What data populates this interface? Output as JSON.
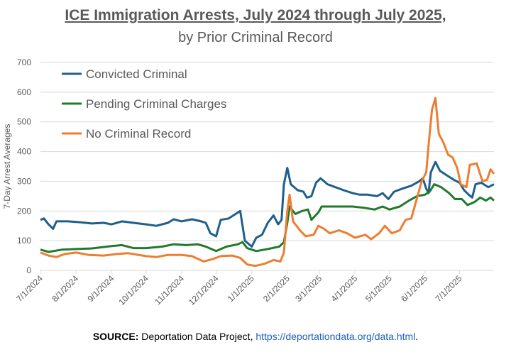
{
  "title": "ICE Immigration Arrests, July 2024 through July 2025,",
  "subtitle": "by Prior Criminal Record",
  "source": {
    "label": "SOURCE:",
    "text": " Deportation Data Project, ",
    "link": "https://deportationdata.org/data.html",
    "end": "."
  },
  "chart_data": {
    "type": "line",
    "title": "ICE Immigration Arrests, July 2024 through July 2025, by Prior Criminal Record",
    "xlabel": "",
    "ylabel": "7-Day Arrest Averages",
    "ylim": [
      0,
      700
    ],
    "yticks": [
      "0",
      "100",
      "200",
      "300",
      "400",
      "500",
      "600",
      "700"
    ],
    "xdomain": [
      "2024-07-01",
      "2025-07-31"
    ],
    "xticks": [
      {
        "label": "7/1/2024",
        "date": "2024-07-01"
      },
      {
        "label": "8/1/2024",
        "date": "2024-08-01"
      },
      {
        "label": "9/1/2024",
        "date": "2024-09-01"
      },
      {
        "label": "10/1/2024",
        "date": "2024-10-01"
      },
      {
        "label": "11/1/2024",
        "date": "2024-11-01"
      },
      {
        "label": "12/1/2024",
        "date": "2024-12-01"
      },
      {
        "label": "1/1/2025",
        "date": "2025-01-01"
      },
      {
        "label": "2/1/2025",
        "date": "2025-02-01"
      },
      {
        "label": "3/1/2025",
        "date": "2025-03-01"
      },
      {
        "label": "4/1/2025",
        "date": "2025-04-01"
      },
      {
        "label": "5/1/2025",
        "date": "2025-05-01"
      },
      {
        "label": "6/1/2025",
        "date": "2025-06-01"
      },
      {
        "label": "7/1/2025",
        "date": "2025-07-01"
      }
    ],
    "grid": true,
    "legend": "top-left",
    "series": [
      {
        "name": "Convicted Criminal",
        "color": "#1f5f8b",
        "points": [
          [
            "2024-07-01",
            170
          ],
          [
            "2024-07-04",
            175
          ],
          [
            "2024-07-08",
            155
          ],
          [
            "2024-07-12",
            140
          ],
          [
            "2024-07-15",
            165
          ],
          [
            "2024-07-25",
            165
          ],
          [
            "2024-08-05",
            162
          ],
          [
            "2024-08-15",
            158
          ],
          [
            "2024-08-25",
            160
          ],
          [
            "2024-09-01",
            155
          ],
          [
            "2024-09-10",
            165
          ],
          [
            "2024-09-20",
            160
          ],
          [
            "2024-10-01",
            155
          ],
          [
            "2024-10-10",
            150
          ],
          [
            "2024-10-20",
            160
          ],
          [
            "2024-10-25",
            172
          ],
          [
            "2024-11-01",
            165
          ],
          [
            "2024-11-10",
            172
          ],
          [
            "2024-11-18",
            165
          ],
          [
            "2024-11-22",
            160
          ],
          [
            "2024-11-26",
            125
          ],
          [
            "2024-12-01",
            115
          ],
          [
            "2024-12-05",
            170
          ],
          [
            "2024-12-12",
            175
          ],
          [
            "2024-12-18",
            190
          ],
          [
            "2024-12-22",
            200
          ],
          [
            "2024-12-26",
            100
          ],
          [
            "2025-01-01",
            80
          ],
          [
            "2025-01-05",
            110
          ],
          [
            "2025-01-10",
            120
          ],
          [
            "2025-01-15",
            160
          ],
          [
            "2025-01-20",
            185
          ],
          [
            "2025-01-24",
            155
          ],
          [
            "2025-01-27",
            170
          ],
          [
            "2025-01-29",
            290
          ],
          [
            "2025-02-01",
            345
          ],
          [
            "2025-02-04",
            290
          ],
          [
            "2025-02-10",
            270
          ],
          [
            "2025-02-15",
            265
          ],
          [
            "2025-02-18",
            245
          ],
          [
            "2025-02-22",
            250
          ],
          [
            "2025-02-26",
            295
          ],
          [
            "2025-03-02",
            310
          ],
          [
            "2025-03-08",
            290
          ],
          [
            "2025-03-15",
            280
          ],
          [
            "2025-03-22",
            270
          ],
          [
            "2025-03-30",
            260
          ],
          [
            "2025-04-05",
            255
          ],
          [
            "2025-04-12",
            255
          ],
          [
            "2025-04-20",
            250
          ],
          [
            "2025-04-25",
            260
          ],
          [
            "2025-04-30",
            240
          ],
          [
            "2025-05-05",
            265
          ],
          [
            "2025-05-12",
            275
          ],
          [
            "2025-05-20",
            285
          ],
          [
            "2025-05-27",
            300
          ],
          [
            "2025-05-30",
            310
          ],
          [
            "2025-06-02",
            275
          ],
          [
            "2025-06-04",
            260
          ],
          [
            "2025-06-06",
            330
          ],
          [
            "2025-06-10",
            365
          ],
          [
            "2025-06-14",
            335
          ],
          [
            "2025-06-20",
            320
          ],
          [
            "2025-06-26",
            305
          ],
          [
            "2025-07-01",
            295
          ],
          [
            "2025-07-05",
            270
          ],
          [
            "2025-07-09",
            255
          ],
          [
            "2025-07-12",
            245
          ],
          [
            "2025-07-15",
            290
          ],
          [
            "2025-07-20",
            295
          ],
          [
            "2025-07-26",
            280
          ],
          [
            "2025-07-31",
            290
          ]
        ]
      },
      {
        "name": "Pending Criminal Charges",
        "color": "#217a2b",
        "points": [
          [
            "2024-07-01",
            70
          ],
          [
            "2024-07-08",
            62
          ],
          [
            "2024-07-20",
            70
          ],
          [
            "2024-08-01",
            72
          ],
          [
            "2024-08-15",
            74
          ],
          [
            "2024-09-01",
            82
          ],
          [
            "2024-09-10",
            85
          ],
          [
            "2024-09-20",
            75
          ],
          [
            "2024-10-01",
            75
          ],
          [
            "2024-10-15",
            80
          ],
          [
            "2024-10-25",
            88
          ],
          [
            "2024-11-05",
            85
          ],
          [
            "2024-11-15",
            88
          ],
          [
            "2024-11-22",
            80
          ],
          [
            "2024-12-01",
            65
          ],
          [
            "2024-12-10",
            80
          ],
          [
            "2024-12-20",
            88
          ],
          [
            "2024-12-24",
            95
          ],
          [
            "2024-12-28",
            75
          ],
          [
            "2025-01-05",
            65
          ],
          [
            "2025-01-15",
            72
          ],
          [
            "2025-01-25",
            80
          ],
          [
            "2025-01-29",
            95
          ],
          [
            "2025-02-01",
            160
          ],
          [
            "2025-02-03",
            215
          ],
          [
            "2025-02-08",
            190
          ],
          [
            "2025-02-14",
            200
          ],
          [
            "2025-02-19",
            205
          ],
          [
            "2025-02-22",
            170
          ],
          [
            "2025-02-28",
            195
          ],
          [
            "2025-03-03",
            215
          ],
          [
            "2025-03-15",
            215
          ],
          [
            "2025-03-30",
            215
          ],
          [
            "2025-04-10",
            210
          ],
          [
            "2025-04-18",
            205
          ],
          [
            "2025-04-25",
            215
          ],
          [
            "2025-05-01",
            205
          ],
          [
            "2025-05-10",
            215
          ],
          [
            "2025-05-18",
            235
          ],
          [
            "2025-05-25",
            250
          ],
          [
            "2025-06-01",
            255
          ],
          [
            "2025-06-05",
            265
          ],
          [
            "2025-06-09",
            290
          ],
          [
            "2025-06-15",
            280
          ],
          [
            "2025-06-22",
            260
          ],
          [
            "2025-06-27",
            240
          ],
          [
            "2025-07-03",
            240
          ],
          [
            "2025-07-08",
            220
          ],
          [
            "2025-07-14",
            230
          ],
          [
            "2025-07-19",
            245
          ],
          [
            "2025-07-24",
            235
          ],
          [
            "2025-07-28",
            245
          ],
          [
            "2025-07-31",
            235
          ]
        ]
      },
      {
        "name": "No Criminal Record",
        "color": "#ed7d31",
        "points": [
          [
            "2024-07-01",
            60
          ],
          [
            "2024-07-08",
            50
          ],
          [
            "2024-07-15",
            45
          ],
          [
            "2024-07-22",
            55
          ],
          [
            "2024-08-01",
            60
          ],
          [
            "2024-08-12",
            52
          ],
          [
            "2024-08-25",
            50
          ],
          [
            "2024-09-05",
            55
          ],
          [
            "2024-09-15",
            58
          ],
          [
            "2024-10-01",
            48
          ],
          [
            "2024-10-10",
            45
          ],
          [
            "2024-10-20",
            52
          ],
          [
            "2024-11-01",
            52
          ],
          [
            "2024-11-10",
            48
          ],
          [
            "2024-11-20",
            30
          ],
          [
            "2024-11-28",
            38
          ],
          [
            "2024-12-05",
            48
          ],
          [
            "2024-12-15",
            50
          ],
          [
            "2024-12-22",
            42
          ],
          [
            "2024-12-28",
            20
          ],
          [
            "2025-01-04",
            15
          ],
          [
            "2025-01-12",
            22
          ],
          [
            "2025-01-20",
            35
          ],
          [
            "2025-01-26",
            30
          ],
          [
            "2025-01-29",
            60
          ],
          [
            "2025-02-01",
            200
          ],
          [
            "2025-02-03",
            255
          ],
          [
            "2025-02-06",
            165
          ],
          [
            "2025-02-12",
            135
          ],
          [
            "2025-02-17",
            115
          ],
          [
            "2025-02-24",
            120
          ],
          [
            "2025-02-28",
            150
          ],
          [
            "2025-03-05",
            140
          ],
          [
            "2025-03-10",
            125
          ],
          [
            "2025-03-18",
            135
          ],
          [
            "2025-03-25",
            125
          ],
          [
            "2025-04-01",
            110
          ],
          [
            "2025-04-10",
            120
          ],
          [
            "2025-04-15",
            105
          ],
          [
            "2025-04-22",
            125
          ],
          [
            "2025-04-27",
            150
          ],
          [
            "2025-05-03",
            125
          ],
          [
            "2025-05-10",
            135
          ],
          [
            "2025-05-15",
            170
          ],
          [
            "2025-05-20",
            175
          ],
          [
            "2025-05-24",
            230
          ],
          [
            "2025-05-29",
            300
          ],
          [
            "2025-06-02",
            330
          ],
          [
            "2025-06-04",
            420
          ],
          [
            "2025-06-07",
            540
          ],
          [
            "2025-06-10",
            580
          ],
          [
            "2025-06-13",
            460
          ],
          [
            "2025-06-17",
            430
          ],
          [
            "2025-06-21",
            390
          ],
          [
            "2025-06-25",
            380
          ],
          [
            "2025-06-29",
            345
          ],
          [
            "2025-07-02",
            290
          ],
          [
            "2025-07-07",
            280
          ],
          [
            "2025-07-10",
            355
          ],
          [
            "2025-07-16",
            360
          ],
          [
            "2025-07-21",
            300
          ],
          [
            "2025-07-25",
            305
          ],
          [
            "2025-07-28",
            340
          ],
          [
            "2025-07-31",
            325
          ]
        ]
      }
    ]
  }
}
